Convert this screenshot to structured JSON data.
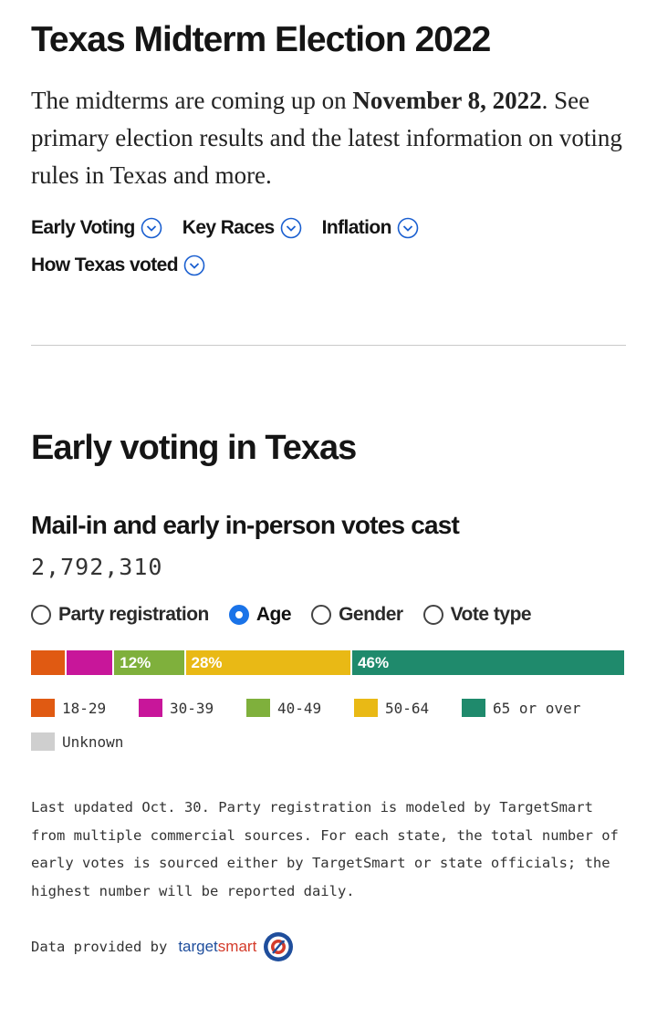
{
  "header": {
    "title": "Texas Midterm Election 2022",
    "intro_before": "The midterms are coming up on ",
    "intro_date": "November 8, 2022",
    "intro_after": ". See primary election results and the latest information on voting rules in Texas and more."
  },
  "nav": {
    "items": [
      {
        "label": "Early Voting"
      },
      {
        "label": "Key Races"
      },
      {
        "label": "Inflation"
      },
      {
        "label": "How Texas voted"
      }
    ]
  },
  "section": {
    "heading": "Early voting in Texas",
    "subheading": "Mail-in and early in-person votes cast",
    "total": "2,792,310"
  },
  "filters": {
    "options": [
      {
        "label": "Party registration",
        "selected": false
      },
      {
        "label": "Age",
        "selected": true
      },
      {
        "label": "Gender",
        "selected": false
      },
      {
        "label": "Vote type",
        "selected": false
      }
    ]
  },
  "chart_data": {
    "type": "bar",
    "orientation": "horizontal-stacked",
    "unit": "percent",
    "categories": [
      "18-29",
      "30-39",
      "40-49",
      "50-64",
      "65 or over",
      "Unknown"
    ],
    "values": [
      6,
      8,
      12,
      28,
      46,
      0
    ],
    "labels": [
      "",
      "",
      "12%",
      "28%",
      "46%",
      ""
    ],
    "colors": [
      "#e05a12",
      "#c8169a",
      "#7fb03c",
      "#e9b915",
      "#1f8a6c",
      "#cfcfcf"
    ],
    "legend_position": "bottom"
  },
  "footer": {
    "note": "Last updated Oct. 30. Party registration is modeled by TargetSmart from multiple commercial sources. For each state, the total number of early votes is sourced either by TargetSmart or state officials; the highest number will be reported daily.",
    "provided_label": "Data provided by",
    "brand_part1": "target",
    "brand_part2": "smart"
  }
}
